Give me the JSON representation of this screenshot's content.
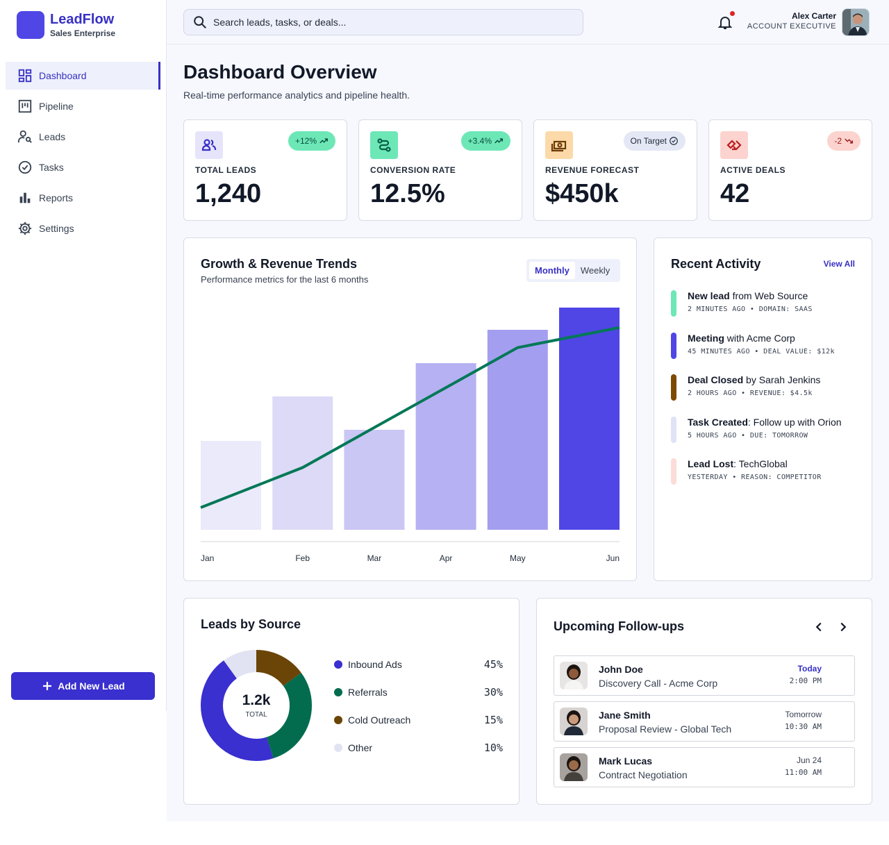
{
  "app": {
    "brand_name": "LeadFlow",
    "brand_sub": "Sales Enterprise",
    "accent": "#3730c4"
  },
  "sidebar": {
    "items": [
      {
        "label": "Dashboard",
        "icon": "dashboard-icon",
        "active": true
      },
      {
        "label": "Pipeline",
        "icon": "pipeline-icon"
      },
      {
        "label": "Leads",
        "icon": "leads-icon"
      },
      {
        "label": "Tasks",
        "icon": "tasks-icon"
      },
      {
        "label": "Reports",
        "icon": "reports-icon"
      },
      {
        "label": "Settings",
        "icon": "settings-icon"
      }
    ],
    "add_button": "Add New Lead"
  },
  "header": {
    "search_placeholder": "Search leads, tasks, or deals...",
    "user_name": "Alex Carter",
    "user_role": "ACCOUNT EXECUTIVE"
  },
  "page": {
    "title": "Dashboard Overview",
    "subtitle": "Real-time performance analytics and pipeline health."
  },
  "stats": [
    {
      "label": "TOTAL LEADS",
      "value": "1,240",
      "badge": "+12%",
      "trend": "up",
      "icon": "users-icon"
    },
    {
      "label": "CONVERSION RATE",
      "value": "12.5%",
      "badge": "+3.4%",
      "trend": "up",
      "icon": "route-icon"
    },
    {
      "label": "REVENUE FORECAST",
      "value": "$450k",
      "badge": "On Target",
      "trend": "check",
      "icon": "payments-icon"
    },
    {
      "label": "ACTIVE DEALS",
      "value": "42",
      "badge": "-2",
      "trend": "down",
      "icon": "handshake-icon"
    }
  ],
  "trends": {
    "title": "Growth & Revenue Trends",
    "subtitle": "Performance metrics for the last 6 months",
    "toggle": [
      "Monthly",
      "Weekly"
    ],
    "active_toggle": "Monthly"
  },
  "chart_data": {
    "type": "bar",
    "categories": [
      "Jan",
      "Feb",
      "Mar",
      "Apr",
      "May",
      "Jun"
    ],
    "values": [
      40,
      60,
      45,
      75,
      90,
      100
    ],
    "line_values": [
      10,
      28,
      46,
      64,
      82,
      91
    ],
    "ylim": [
      0,
      100
    ],
    "bar_colors": [
      "#ebeafa",
      "#dcdaf6",
      "#cac7f4",
      "#b6b1f2",
      "#a49ef0",
      "#4f46e5"
    ],
    "line_color": "#047857"
  },
  "activity": {
    "title": "Recent Activity",
    "view_all": "View All",
    "items": [
      {
        "bold": "New lead",
        "rest": " from Web Source",
        "meta": "2 MINUTES AGO • DOMAIN: SAAS",
        "color": "#6ee7b7"
      },
      {
        "bold": "Meeting",
        "rest": " with Acme Corp",
        "meta": "45 MINUTES AGO • DEAL VALUE: $12k",
        "color": "#4f46e5"
      },
      {
        "bold": "Deal Closed",
        "rest": " by Sarah Jenkins",
        "meta": "2 HOURS AGO • REVENUE: $4.5k",
        "color": "#7c4a03"
      },
      {
        "bold": "Task Created",
        "rest": ": Follow up with Orion",
        "meta": "5 HOURS AGO • DUE: TOMORROW",
        "color": "#dfe3f5"
      },
      {
        "bold": "Lead Lost",
        "rest": ": TechGlobal",
        "meta": "YESTERDAY • REASON: COMPETITOR",
        "color": "#fcdcd6"
      }
    ]
  },
  "sources": {
    "title": "Leads by Source",
    "total_value": "1.2k",
    "total_label": "TOTAL",
    "items": [
      {
        "label": "Inbound Ads",
        "value": "45%",
        "pct": 45,
        "color": "#3a2fcf"
      },
      {
        "label": "Referrals",
        "value": "30%",
        "pct": 30,
        "color": "#046c4e"
      },
      {
        "label": "Cold Outreach",
        "value": "15%",
        "pct": 15,
        "color": "#6b4407"
      },
      {
        "label": "Other",
        "value": "10%",
        "pct": 10,
        "color": "#e1e3f2"
      }
    ]
  },
  "followups": {
    "title": "Upcoming Follow-ups",
    "items": [
      {
        "name": "John Doe",
        "task": "Discovery Call - Acme Corp",
        "when": "Today",
        "time": "2:00 PM",
        "highlight": true
      },
      {
        "name": "Jane Smith",
        "task": "Proposal Review - Global Tech",
        "when": "Tomorrow",
        "time": "10:30 AM",
        "highlight": false
      },
      {
        "name": "Mark Lucas",
        "task": "Contract Negotiation",
        "when": "Jun 24",
        "time": "11:00 AM",
        "highlight": false
      }
    ]
  }
}
